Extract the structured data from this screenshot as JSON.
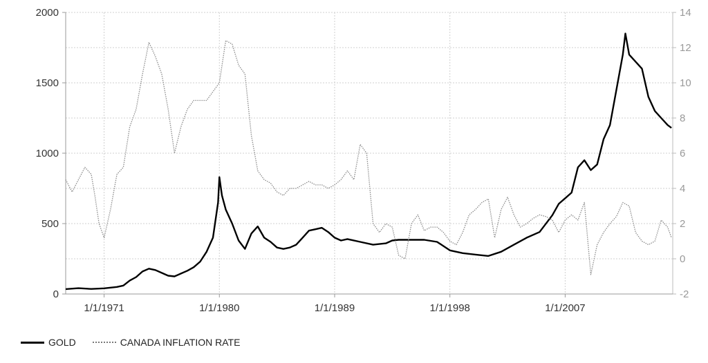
{
  "chart_data": {
    "type": "line",
    "title": "",
    "xlabel": "",
    "ylabel": "",
    "x_tick_labels": [
      "1/1/1971",
      "1/1/1980",
      "1/1/1989",
      "1/1/1998",
      "1/1/2007"
    ],
    "x_range": [
      1968.0,
      2015.4
    ],
    "y_left": {
      "range": [
        0,
        2000
      ],
      "ticks": [
        "0",
        "500",
        "1000",
        "1500",
        "2000"
      ]
    },
    "y_right": {
      "range": [
        -2,
        14
      ],
      "ticks": [
        "-2",
        "0",
        "2",
        "4",
        "6",
        "8",
        "10",
        "12",
        "14"
      ]
    },
    "grid": true,
    "legend_position": "bottom-left",
    "series": [
      {
        "name": "GOLD",
        "axis": "left",
        "color": "#000000",
        "style": "solid",
        "x": [
          1968.0,
          1969.0,
          1970.0,
          1971.0,
          1972.0,
          1972.5,
          1973.0,
          1973.5,
          1974.0,
          1974.5,
          1975.0,
          1975.5,
          1976.0,
          1976.5,
          1977.0,
          1977.5,
          1978.0,
          1978.5,
          1979.0,
          1979.5,
          1979.9,
          1980.0,
          1980.2,
          1980.5,
          1981.0,
          1981.5,
          1982.0,
          1982.5,
          1983.0,
          1983.5,
          1984.0,
          1984.5,
          1985.0,
          1985.5,
          1986.0,
          1986.5,
          1987.0,
          1987.5,
          1988.0,
          1988.5,
          1989.0,
          1989.5,
          1990.0,
          1991.0,
          1992.0,
          1993.0,
          1993.5,
          1994.0,
          1995.0,
          1996.0,
          1997.0,
          1998.0,
          1999.0,
          2000.0,
          2001.0,
          2002.0,
          2003.0,
          2004.0,
          2005.0,
          2006.0,
          2006.5,
          2007.0,
          2007.5,
          2008.0,
          2008.5,
          2009.0,
          2009.5,
          2010.0,
          2010.5,
          2011.0,
          2011.5,
          2011.7,
          2012.0,
          2012.5,
          2013.0,
          2013.5,
          2014.0,
          2014.5,
          2015.0,
          2015.3
        ],
        "y": [
          35,
          41,
          36,
          40,
          50,
          60,
          95,
          120,
          160,
          180,
          170,
          150,
          130,
          125,
          145,
          165,
          190,
          230,
          300,
          400,
          650,
          830,
          700,
          600,
          500,
          380,
          320,
          430,
          480,
          400,
          370,
          330,
          320,
          330,
          350,
          400,
          450,
          460,
          470,
          440,
          400,
          380,
          390,
          370,
          350,
          360,
          380,
          385,
          385,
          385,
          370,
          310,
          290,
          280,
          270,
          300,
          350,
          400,
          440,
          560,
          640,
          680,
          720,
          900,
          950,
          880,
          920,
          1100,
          1200,
          1450,
          1700,
          1850,
          1700,
          1650,
          1600,
          1400,
          1300,
          1250,
          1200,
          1180
        ]
      },
      {
        "name": "CANADA INFLATION RATE",
        "axis": "right",
        "color": "#8a8a8a",
        "style": "dotted",
        "x": [
          1968.0,
          1968.5,
          1969.0,
          1969.5,
          1970.0,
          1970.3,
          1970.6,
          1971.0,
          1971.5,
          1972.0,
          1972.5,
          1973.0,
          1973.5,
          1974.0,
          1974.5,
          1975.0,
          1975.5,
          1976.0,
          1976.5,
          1977.0,
          1977.5,
          1978.0,
          1978.5,
          1979.0,
          1979.5,
          1980.0,
          1980.5,
          1981.0,
          1981.5,
          1982.0,
          1982.5,
          1983.0,
          1983.5,
          1984.0,
          1984.5,
          1985.0,
          1985.5,
          1986.0,
          1986.5,
          1987.0,
          1987.5,
          1988.0,
          1988.5,
          1989.0,
          1989.5,
          1990.0,
          1990.5,
          1991.0,
          1991.5,
          1992.0,
          1992.5,
          1993.0,
          1993.5,
          1994.0,
          1994.5,
          1995.0,
          1995.5,
          1996.0,
          1996.5,
          1997.0,
          1997.5,
          1998.0,
          1998.5,
          1999.0,
          1999.5,
          2000.0,
          2000.5,
          2001.0,
          2001.5,
          2002.0,
          2002.5,
          2003.0,
          2003.5,
          2004.0,
          2004.5,
          2005.0,
          2005.5,
          2006.0,
          2006.5,
          2007.0,
          2007.5,
          2008.0,
          2008.5,
          2009.0,
          2009.5,
          2010.0,
          2010.5,
          2011.0,
          2011.5,
          2012.0,
          2012.5,
          2013.0,
          2013.5,
          2014.0,
          2014.5,
          2015.0,
          2015.3
        ],
        "y": [
          4.5,
          3.8,
          4.5,
          5.2,
          4.8,
          3.5,
          2.0,
          1.2,
          2.8,
          4.8,
          5.2,
          7.5,
          8.5,
          10.5,
          12.3,
          11.5,
          10.5,
          8.5,
          6.0,
          7.5,
          8.5,
          9.0,
          9.0,
          9.0,
          9.5,
          10.0,
          12.4,
          12.2,
          11.0,
          10.5,
          7.0,
          5.0,
          4.5,
          4.3,
          3.8,
          3.6,
          4.0,
          4.0,
          4.2,
          4.4,
          4.2,
          4.2,
          4.0,
          4.2,
          4.5,
          5.0,
          4.5,
          6.5,
          6.0,
          2.0,
          1.5,
          2.0,
          1.8,
          0.2,
          0.0,
          2.0,
          2.5,
          1.6,
          1.8,
          1.8,
          1.5,
          1.0,
          0.8,
          1.5,
          2.5,
          2.8,
          3.2,
          3.4,
          1.2,
          2.8,
          3.5,
          2.5,
          1.8,
          2.0,
          2.3,
          2.5,
          2.4,
          2.2,
          1.5,
          2.2,
          2.5,
          2.2,
          3.2,
          -0.9,
          0.8,
          1.5,
          2.0,
          2.4,
          3.2,
          3.0,
          1.5,
          1.0,
          0.8,
          1.0,
          2.2,
          1.8,
          1.2
        ]
      }
    ]
  },
  "legend": {
    "items": [
      {
        "label": "GOLD"
      },
      {
        "label": "CANADA INFLATION RATE"
      }
    ]
  }
}
